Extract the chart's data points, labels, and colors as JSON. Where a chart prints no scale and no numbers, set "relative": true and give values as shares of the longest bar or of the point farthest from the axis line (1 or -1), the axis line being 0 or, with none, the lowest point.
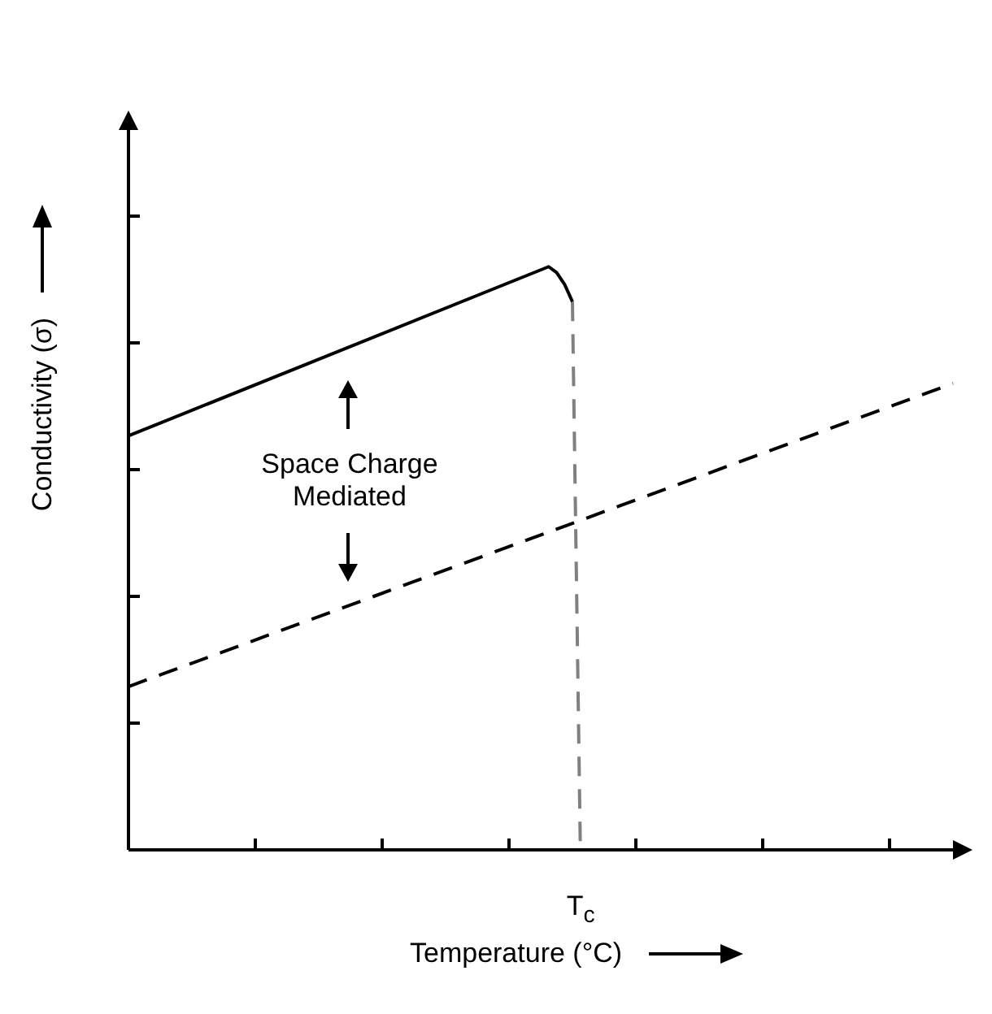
{
  "chart_data": {
    "type": "line",
    "relative": true,
    "xlabel": "Temperature (°C)",
    "ylabel": "Conductivity (σ)",
    "annotations": [
      "Space Charge Mediated",
      "T$_{c}$"
    ],
    "categories": [
      null,
      null,
      null,
      null,
      null,
      null,
      null,
      null,
      null,
      null,
      null,
      null,
      null,
      null,
      null,
      null,
      null,
      null,
      null,
      null,
      null,
      null,
      null,
      null,
      null,
      null,
      null,
      null,
      null,
      null,
      null,
      null,
      null,
      null,
      null,
      null,
      null,
      null,
      null,
      null,
      null,
      null,
      null,
      null,
      null,
      null,
      null,
      null,
      null,
      null,
      null,
      null,
      null,
      null,
      null,
      null,
      null,
      null,
      null,
      null,
      null,
      null,
      null,
      null,
      null,
      null,
      null,
      null,
      null,
      null,
      null,
      null,
      null,
      null,
      null,
      null,
      null,
      null,
      null,
      null,
      null,
      null,
      null,
      null,
      null,
      null,
      null,
      null,
      null,
      null,
      null,
      null,
      null,
      null,
      null,
      null,
      null,
      null,
      null,
      null,
      null,
      null,
      null,
      null,
      null
    ],
    "series": [
      {
        "color": "#000000",
        "line_style": "solid",
        "values": [
          0.71,
          null,
          null,
          null,
          null,
          null,
          null,
          null,
          null,
          null,
          null,
          null,
          null,
          null,
          null,
          null,
          null,
          null,
          null,
          null,
          null,
          null,
          null,
          null,
          null,
          null,
          null,
          null,
          null,
          null,
          null,
          null,
          null,
          null,
          null,
          null,
          null,
          null,
          null,
          null,
          null,
          null,
          null,
          null,
          null,
          null,
          null,
          null,
          null,
          null,
          null,
          null,
          null,
          1.0,
          0.99,
          0.97,
          0.94,
          null,
          null,
          null,
          null,
          null,
          null,
          null,
          null,
          null,
          null,
          null,
          null,
          null,
          null,
          null,
          null,
          null,
          null,
          null,
          null,
          null,
          null,
          null,
          null,
          null,
          null,
          null,
          null,
          null,
          null,
          null,
          null,
          null,
          null,
          null,
          null,
          null,
          null,
          null,
          null,
          null,
          null,
          null,
          null,
          null,
          null,
          null,
          null
        ]
      },
      {
        "color": "#808080",
        "line_style": "dashed",
        "values": [
          null,
          null,
          null,
          null,
          null,
          null,
          null,
          null,
          null,
          null,
          null,
          null,
          null,
          null,
          null,
          null,
          null,
          null,
          null,
          null,
          null,
          null,
          null,
          null,
          null,
          null,
          null,
          null,
          null,
          null,
          null,
          null,
          null,
          null,
          null,
          null,
          null,
          null,
          null,
          null,
          null,
          null,
          null,
          null,
          null,
          null,
          null,
          null,
          null,
          null,
          null,
          null,
          null,
          null,
          null,
          null,
          0.94,
          0,
          null,
          null,
          null,
          null,
          null,
          null,
          null,
          null,
          null,
          null,
          null,
          null,
          null,
          null,
          null,
          null,
          null,
          null,
          null,
          null,
          null,
          null,
          null,
          null,
          null,
          null,
          null,
          null,
          null,
          null,
          null,
          null,
          null,
          null,
          null,
          null,
          null,
          null,
          null,
          null,
          null,
          null,
          null,
          null,
          null,
          null,
          null
        ]
      },
      {
        "color": "#000000",
        "line_style": "dashed",
        "values": [
          0.28,
          null,
          null,
          null,
          null,
          null,
          null,
          null,
          null,
          null,
          null,
          null,
          null,
          null,
          null,
          null,
          null,
          null,
          null,
          null,
          null,
          null,
          null,
          null,
          null,
          null,
          null,
          null,
          null,
          null,
          null,
          null,
          null,
          null,
          null,
          null,
          null,
          null,
          null,
          null,
          null,
          null,
          null,
          null,
          null,
          null,
          null,
          null,
          null,
          null,
          null,
          null,
          null,
          null,
          null,
          null,
          null,
          null,
          null,
          null,
          null,
          null,
          null,
          null,
          null,
          null,
          null,
          null,
          null,
          null,
          null,
          null,
          null,
          null,
          null,
          null,
          null,
          null,
          null,
          null,
          null,
          null,
          null,
          null,
          null,
          null,
          null,
          null,
          null,
          null,
          null,
          null,
          null,
          null,
          null,
          null,
          null,
          null,
          null,
          null,
          null,
          null,
          null,
          null,
          0.8
        ]
      }
    ]
  }
}
